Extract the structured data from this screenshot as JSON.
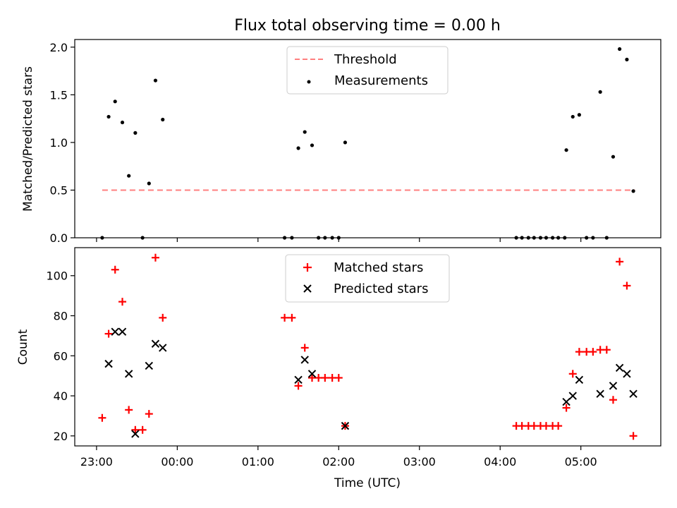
{
  "chart_data": [
    {
      "type": "scatter",
      "title": "Flux total observing time = 0.00 h",
      "ylabel": "Matched/Predicted stars",
      "xlabel": "",
      "ylim": [
        0,
        2.08
      ],
      "yticks": [
        "0.0",
        "0.5",
        "1.0",
        "1.5",
        "2.0"
      ],
      "xlim_hours": [
        -1.27,
        5.99
      ],
      "grid": false,
      "legend_position": "top-center",
      "series": [
        {
          "name": "Threshold",
          "style": "dashed-line",
          "color": "#ff7f7f",
          "x": [
            -0.93,
            5.67
          ],
          "y": [
            0.5,
            0.5
          ]
        },
        {
          "name": "Measurements",
          "style": "dot",
          "color": "#000000",
          "x": [
            -0.93,
            -0.85,
            -0.77,
            -0.68,
            -0.6,
            -0.52,
            -0.43,
            -0.35,
            -0.27,
            -0.18,
            1.33,
            1.42,
            1.5,
            1.58,
            1.67,
            1.75,
            1.83,
            1.92,
            2.0,
            2.08,
            4.2,
            4.27,
            4.35,
            4.42,
            4.5,
            4.57,
            4.65,
            4.72,
            4.8,
            4.82,
            4.9,
            4.98,
            5.07,
            5.15,
            5.24,
            5.32,
            5.4,
            5.48,
            5.57,
            5.65
          ],
          "y": [
            0.0,
            1.27,
            1.43,
            1.21,
            0.65,
            1.1,
            0.0,
            0.57,
            1.65,
            1.24,
            0.0,
            0.0,
            0.94,
            1.11,
            0.97,
            0.0,
            0.0,
            0.0,
            0.0,
            1.0,
            0.0,
            0.0,
            0.0,
            0.0,
            0.0,
            0.0,
            0.0,
            0.0,
            0.0,
            0.92,
            1.27,
            1.29,
            0.0,
            0.0,
            1.53,
            0.0,
            0.85,
            1.98,
            1.87,
            0.49
          ]
        }
      ]
    },
    {
      "type": "scatter",
      "title": "",
      "ylabel": "Count",
      "xlabel": "Time (UTC)",
      "ylim": [
        15,
        114
      ],
      "yticks": [
        "20",
        "40",
        "60",
        "80",
        "100"
      ],
      "xlim_hours": [
        -1.27,
        5.99
      ],
      "xticks": [
        "23:00",
        "00:00",
        "01:00",
        "02:00",
        "03:00",
        "04:00",
        "05:00"
      ],
      "grid": false,
      "legend_position": "top-center",
      "series": [
        {
          "name": "Matched stars",
          "marker": "plus",
          "color": "#ff0000",
          "x": [
            -0.93,
            -0.85,
            -0.77,
            -0.68,
            -0.6,
            -0.52,
            -0.43,
            -0.35,
            -0.27,
            -0.18,
            1.33,
            1.42,
            1.5,
            1.58,
            1.67,
            1.75,
            1.83,
            1.92,
            2.0,
            2.08,
            4.2,
            4.27,
            4.35,
            4.42,
            4.5,
            4.57,
            4.65,
            4.72,
            4.82,
            4.9,
            4.98,
            5.07,
            5.15,
            5.24,
            5.32,
            5.4,
            5.48,
            5.57,
            5.65
          ],
          "y": [
            29,
            71,
            103,
            87,
            33,
            23,
            23,
            31,
            109,
            79,
            79,
            79,
            45,
            64,
            49,
            49,
            49,
            49,
            49,
            25,
            25,
            25,
            25,
            25,
            25,
            25,
            25,
            25,
            34,
            51,
            62,
            62,
            62,
            63,
            63,
            38,
            107,
            95,
            20
          ]
        },
        {
          "name": "Predicted stars",
          "marker": "x",
          "color": "#000000",
          "x": [
            -0.85,
            -0.77,
            -0.68,
            -0.6,
            -0.52,
            -0.35,
            -0.27,
            -0.18,
            1.5,
            1.58,
            1.67,
            2.08,
            4.82,
            4.9,
            4.98,
            5.24,
            5.4,
            5.48,
            5.57,
            5.65
          ],
          "y": [
            56,
            72,
            72,
            51,
            21,
            55,
            66,
            64,
            48,
            58,
            51,
            25,
            37,
            40,
            48,
            41,
            45,
            54,
            51,
            41
          ]
        }
      ]
    }
  ]
}
